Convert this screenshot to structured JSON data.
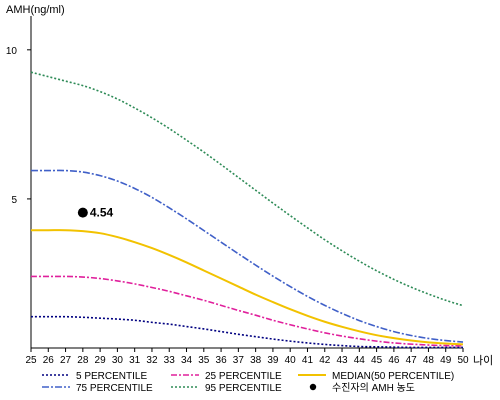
{
  "chart_data": {
    "type": "line",
    "ylabel": "AMH(ng/ml)",
    "xlabel": "나이",
    "xlim": [
      25,
      50
    ],
    "ylim": [
      0,
      11
    ],
    "yticks": [
      5,
      10
    ],
    "ytick_labels": [
      "5",
      "10"
    ],
    "xticks": [
      25,
      26,
      27,
      28,
      29,
      30,
      31,
      32,
      33,
      34,
      35,
      36,
      37,
      38,
      39,
      40,
      41,
      42,
      43,
      44,
      45,
      46,
      47,
      48,
      49,
      50
    ],
    "xtick_labels": [
      "25",
      "26",
      "27",
      "28",
      "29",
      "30",
      "31",
      "32",
      "33",
      "34",
      "35",
      "36",
      "37",
      "38",
      "39",
      "40",
      "41",
      "42",
      "43",
      "44",
      "45",
      "46",
      "47",
      "48",
      "49",
      "50"
    ],
    "x": [
      25,
      26,
      27,
      28,
      29,
      30,
      31,
      32,
      33,
      34,
      35,
      36,
      37,
      38,
      39,
      40,
      41,
      42,
      43,
      44,
      45,
      46,
      47,
      48,
      49,
      50
    ],
    "series": [
      {
        "name": "5 PERCENTILE",
        "color": "#000080",
        "dash": "2,2",
        "values": [
          1.05,
          1.05,
          1.05,
          1.03,
          1.0,
          0.97,
          0.93,
          0.86,
          0.8,
          0.72,
          0.64,
          0.55,
          0.46,
          0.38,
          0.3,
          0.23,
          0.17,
          0.12,
          0.08,
          0.05,
          0.04,
          0.03,
          0.02,
          0.02,
          0.02,
          0.02
        ]
      },
      {
        "name": "25 PERCENTILE",
        "color": "#E0209C",
        "dash": "6,2,2,2",
        "values": [
          2.4,
          2.4,
          2.4,
          2.38,
          2.33,
          2.25,
          2.15,
          2.03,
          1.9,
          1.75,
          1.6,
          1.43,
          1.26,
          1.1,
          0.93,
          0.78,
          0.64,
          0.51,
          0.4,
          0.31,
          0.23,
          0.17,
          0.13,
          0.1,
          0.08,
          0.07
        ]
      },
      {
        "name": "MEDIAN(50 PERCENTILE)",
        "color": "#F2C200",
        "dash": "",
        "values": [
          3.95,
          3.95,
          3.95,
          3.92,
          3.85,
          3.72,
          3.55,
          3.35,
          3.12,
          2.87,
          2.6,
          2.33,
          2.06,
          1.79,
          1.54,
          1.3,
          1.08,
          0.88,
          0.71,
          0.56,
          0.43,
          0.33,
          0.25,
          0.19,
          0.15,
          0.12
        ]
      },
      {
        "name": "75 PERCENTILE",
        "color": "#4060C8",
        "dash": "7,2,2,2",
        "values": [
          5.95,
          5.95,
          5.95,
          5.9,
          5.78,
          5.6,
          5.35,
          5.05,
          4.7,
          4.33,
          3.94,
          3.55,
          3.16,
          2.78,
          2.41,
          2.06,
          1.73,
          1.43,
          1.16,
          0.92,
          0.72,
          0.55,
          0.42,
          0.32,
          0.25,
          0.2
        ]
      },
      {
        "name": "95 PERCENTILE",
        "color": "#2E8B57",
        "dash": "2,2",
        "values": [
          9.25,
          9.1,
          8.95,
          8.8,
          8.6,
          8.35,
          8.05,
          7.72,
          7.36,
          6.97,
          6.57,
          6.15,
          5.72,
          5.29,
          4.86,
          4.44,
          4.03,
          3.63,
          3.26,
          2.91,
          2.59,
          2.3,
          2.04,
          1.81,
          1.6,
          1.42
        ]
      }
    ],
    "marker": {
      "name": "수진자의 AMH 농도",
      "x": 28,
      "y": 4.54,
      "label": "4.54",
      "color": "#000000"
    },
    "legend": {
      "placement": "bottom",
      "items": [
        {
          "label": "5 PERCENTILE",
          "color": "#000080",
          "dash": "2,2",
          "kind": "line"
        },
        {
          "label": "25 PERCENTILE",
          "color": "#E0209C",
          "dash": "6,2,2,2",
          "kind": "line"
        },
        {
          "label": "MEDIAN(50 PERCENTILE)",
          "color": "#F2C200",
          "dash": "",
          "kind": "line"
        },
        {
          "label": "75 PERCENTILE",
          "color": "#4060C8",
          "dash": "7,2,2,2",
          "kind": "line"
        },
        {
          "label": "95 PERCENTILE",
          "color": "#2E8B57",
          "dash": "2,2",
          "kind": "line"
        },
        {
          "label": "수진자의 AMH 농도",
          "color": "#000000",
          "dash": "",
          "kind": "dot"
        }
      ]
    },
    "grid": false
  }
}
